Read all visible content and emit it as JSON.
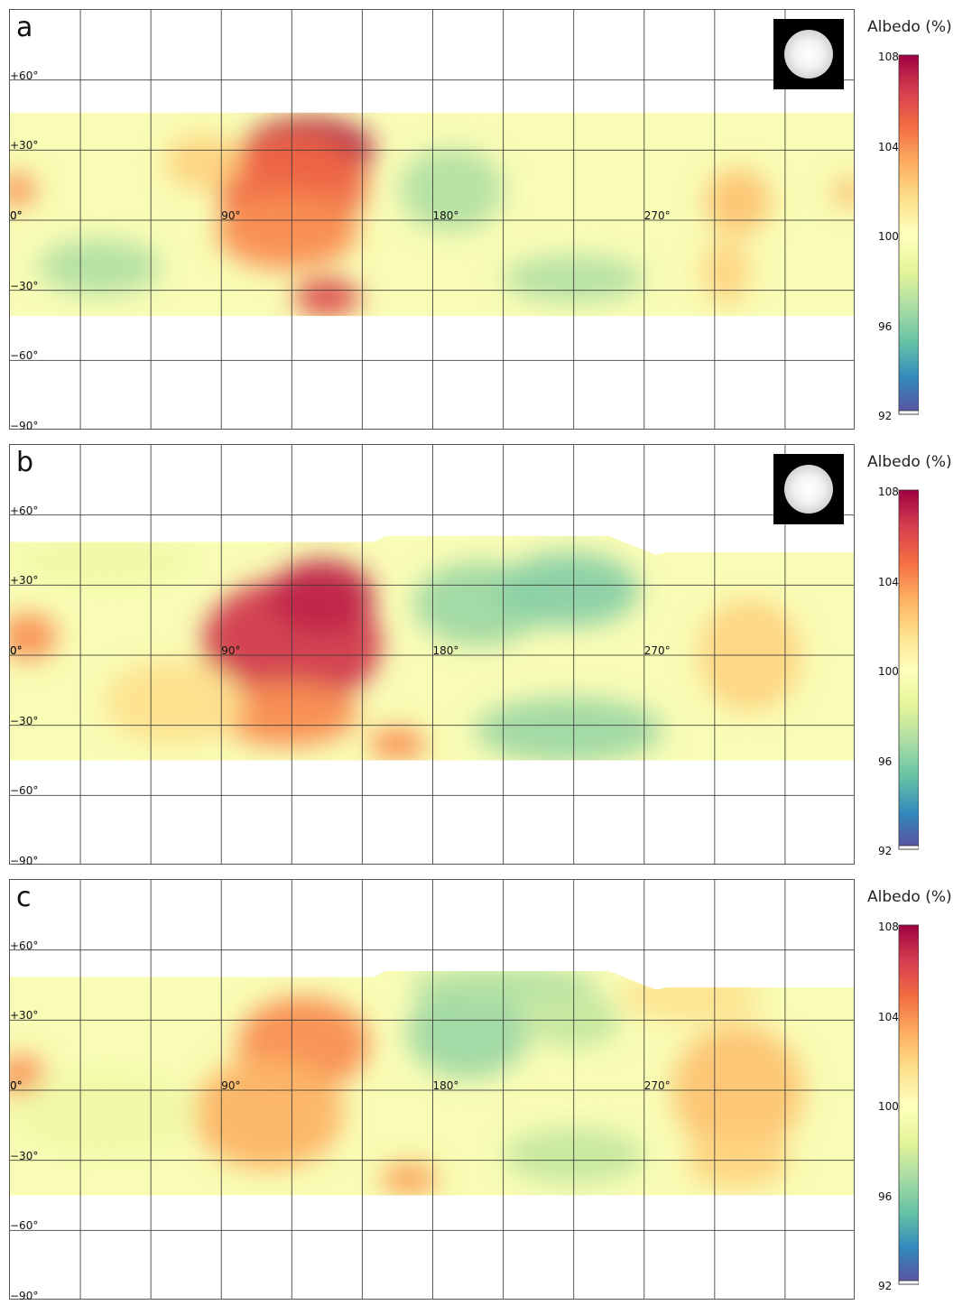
{
  "colors": {
    "scale": [
      "#5e4fa2",
      "#3288bd",
      "#66c2a5",
      "#abdda4",
      "#e6f598",
      "#ffffbf",
      "#fee08b",
      "#fdae61",
      "#f46d43",
      "#d53e4f",
      "#9e0142"
    ],
    "grid": "#3a3a3a"
  },
  "colorbar": {
    "title": "Albedo (%)",
    "ticks": [
      "108",
      "104",
      "100",
      "96",
      "92"
    ]
  },
  "axes": {
    "lat_labels": [
      "+60°",
      "+30°",
      "0°",
      "−30°",
      "−60°",
      "−90°"
    ],
    "lon_labels": [
      "0°",
      "90°",
      "180°",
      "270°"
    ]
  },
  "panels": [
    {
      "id": "a",
      "letter": "a",
      "has_disk_image": true,
      "thumbnail_icon": "planet-disk-icon",
      "features": [
        {
          "lon": 127,
          "lat": 30,
          "albedo": 107.5,
          "rlon": 28,
          "rlat": 14
        },
        {
          "lon": 120,
          "lat": 15,
          "albedo": 105.0,
          "rlon": 32,
          "rlat": 22
        },
        {
          "lon": 118,
          "lat": -5,
          "albedo": 104.0,
          "rlon": 30,
          "rlat": 16
        },
        {
          "lon": 135,
          "lat": -33,
          "albedo": 106.0,
          "rlon": 14,
          "rlat": 8
        },
        {
          "lon": 82,
          "lat": 25,
          "albedo": 102.0,
          "rlon": 16,
          "rlat": 12
        },
        {
          "lon": 3,
          "lat": 13,
          "albedo": 104.0,
          "rlon": 8,
          "rlat": 7
        },
        {
          "lon": 188,
          "lat": 13,
          "albedo": 97.0,
          "rlon": 22,
          "rlat": 18
        },
        {
          "lon": 38,
          "lat": -20,
          "albedo": 97.0,
          "rlon": 26,
          "rlat": 12
        },
        {
          "lon": 240,
          "lat": -25,
          "albedo": 97.0,
          "rlon": 30,
          "rlat": 10
        },
        {
          "lon": 310,
          "lat": 8,
          "albedo": 102.5,
          "rlon": 14,
          "rlat": 14
        },
        {
          "lon": 305,
          "lat": -22,
          "albedo": 102.0,
          "rlon": 10,
          "rlat": 14
        },
        {
          "lon": 357,
          "lat": 12,
          "albedo": 103.0,
          "rlon": 6,
          "rlat": 6
        }
      ]
    },
    {
      "id": "b",
      "letter": "b",
      "has_disk_image": true,
      "thumbnail_icon": "planet-disk-icon",
      "features": [
        {
          "lon": 120,
          "lat": 5,
          "albedo": 106.5,
          "rlon": 38,
          "rlat": 28
        },
        {
          "lon": 133,
          "lat": 25,
          "albedo": 107.0,
          "rlon": 22,
          "rlat": 16
        },
        {
          "lon": 118,
          "lat": -25,
          "albedo": 104.0,
          "rlon": 30,
          "rlat": 14
        },
        {
          "lon": 165,
          "lat": -38,
          "albedo": 104.0,
          "rlon": 12,
          "rlat": 7
        },
        {
          "lon": 70,
          "lat": -20,
          "albedo": 101.5,
          "rlon": 30,
          "rlat": 18
        },
        {
          "lon": 8,
          "lat": 8,
          "albedo": 104.0,
          "rlon": 12,
          "rlat": 10
        },
        {
          "lon": 200,
          "lat": 22,
          "albedo": 96.5,
          "rlon": 28,
          "rlat": 18
        },
        {
          "lon": 238,
          "lat": 28,
          "albedo": 96.0,
          "rlon": 30,
          "rlat": 16
        },
        {
          "lon": 238,
          "lat": -32,
          "albedo": 96.5,
          "rlon": 40,
          "rlat": 14
        },
        {
          "lon": 315,
          "lat": 0,
          "albedo": 102.0,
          "rlon": 22,
          "rlat": 24
        },
        {
          "lon": 40,
          "lat": 40,
          "albedo": 99.0,
          "rlon": 40,
          "rlat": 10
        }
      ]
    },
    {
      "id": "c",
      "letter": "c",
      "has_disk_image": false,
      "features": [
        {
          "lon": 125,
          "lat": 20,
          "albedo": 104.0,
          "rlon": 28,
          "rlat": 20
        },
        {
          "lon": 110,
          "lat": -10,
          "albedo": 103.0,
          "rlon": 32,
          "rlat": 24
        },
        {
          "lon": 170,
          "lat": -38,
          "albedo": 103.5,
          "rlon": 12,
          "rlat": 7
        },
        {
          "lon": 5,
          "lat": 6,
          "albedo": 104.0,
          "rlon": 10,
          "rlat": 9
        },
        {
          "lon": 195,
          "lat": 25,
          "albedo": 96.5,
          "rlon": 26,
          "rlat": 20
        },
        {
          "lon": 210,
          "lat": 45,
          "albedo": 97.0,
          "rlon": 40,
          "rlat": 8
        },
        {
          "lon": 240,
          "lat": 30,
          "albedo": 97.5,
          "rlon": 20,
          "rlat": 12
        },
        {
          "lon": 240,
          "lat": -28,
          "albedo": 97.5,
          "rlon": 30,
          "rlat": 12
        },
        {
          "lon": 310,
          "lat": 0,
          "albedo": 102.5,
          "rlon": 28,
          "rlat": 28
        },
        {
          "lon": 310,
          "lat": -30,
          "albedo": 102.0,
          "rlon": 22,
          "rlat": 12
        },
        {
          "lon": 290,
          "lat": 40,
          "albedo": 101.5,
          "rlon": 30,
          "rlat": 10
        },
        {
          "lon": 40,
          "lat": -10,
          "albedo": 99.0,
          "rlon": 40,
          "rlat": 18
        }
      ]
    }
  ]
}
